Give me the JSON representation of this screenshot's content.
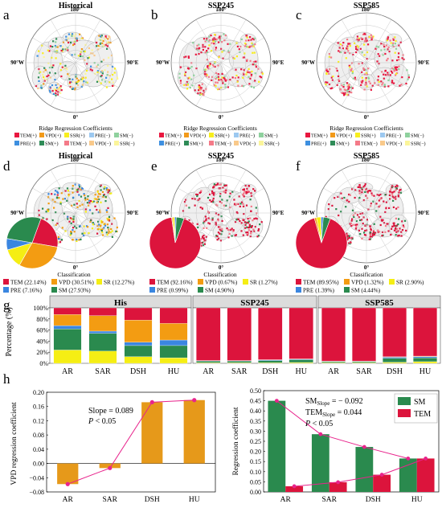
{
  "panels": {
    "a": {
      "letter": "a",
      "title": "Historical"
    },
    "b": {
      "letter": "b",
      "title": "SSP245"
    },
    "c": {
      "letter": "c",
      "title": "SSP585"
    },
    "d": {
      "letter": "d",
      "title": "Historical"
    },
    "e": {
      "letter": "e",
      "title": "SSP245"
    },
    "f": {
      "letter": "f",
      "title": "SSP585"
    },
    "g": {
      "letter": "g"
    },
    "h": {
      "letter": "h"
    }
  },
  "map_labels": {
    "top": "180°",
    "left": "90°W",
    "right": "90°E",
    "bottom": "0°"
  },
  "colors": {
    "TEM_pos": "#e8173f",
    "TEM_neg": "#f47a88",
    "PRE_pos": "#3d8fe0",
    "PRE_neg": "#9cc8f0",
    "VPD_pos": "#f29a1a",
    "VPD_neg": "#f9c98a",
    "SM_pos": "#2e8b57",
    "SM_neg": "#8fd19e",
    "SSR_pos": "#f7ee1e",
    "SSR_neg": "#fbf59a",
    "TEM": "#dc143c",
    "VPD": "#f39c12",
    "SR": "#f5ee14",
    "PRE": "#3a86e0",
    "SM": "#2a8a4e",
    "bar_orange": "#e6991a",
    "line_magenta": "#e8248c"
  },
  "ridge_legend": {
    "title": "Ridge Regression Coefficients",
    "items": [
      {
        "label": "TEM(+)",
        "color": "#e8173f"
      },
      {
        "label": "VPD(+)",
        "color": "#f29a1a"
      },
      {
        "label": "SSR(+)",
        "color": "#f7ee1e"
      },
      {
        "label": "PRE(−)",
        "color": "#9cc8f0"
      },
      {
        "label": "SM(−)",
        "color": "#8fd19e"
      },
      {
        "label": "PRE(+)",
        "color": "#3d8fe0"
      },
      {
        "label": "SM(+)",
        "color": "#2e8b57"
      },
      {
        "label": "TEM(−)",
        "color": "#f47a88"
      },
      {
        "label": "VPD(−)",
        "color": "#f9c98a"
      },
      {
        "label": "SSR(−)",
        "color": "#fbf59a"
      }
    ]
  },
  "classification": {
    "title": "Classification",
    "historical": [
      {
        "label": "TEM (22.14%)",
        "value": 22.14,
        "color": "#dc143c"
      },
      {
        "label": "VPD (30.51%)",
        "value": 30.51,
        "color": "#f39c12"
      },
      {
        "label": "SR (12.27%)",
        "value": 12.27,
        "color": "#f5ee14"
      },
      {
        "label": "PRE (7.16%)",
        "value": 7.16,
        "color": "#3a86e0"
      },
      {
        "label": "SM (27.93%)",
        "value": 27.93,
        "color": "#2a8a4e"
      }
    ],
    "ssp245": [
      {
        "label": "TEM (92.16%)",
        "value": 92.16,
        "color": "#dc143c"
      },
      {
        "label": "VPD (0.67%)",
        "value": 0.67,
        "color": "#f39c12"
      },
      {
        "label": "SR (1.27%)",
        "value": 1.27,
        "color": "#f5ee14"
      },
      {
        "label": "PRE (0.99%)",
        "value": 0.99,
        "color": "#3a86e0"
      },
      {
        "label": "SM (4.90%)",
        "value": 4.9,
        "color": "#2a8a4e"
      }
    ],
    "ssp585": [
      {
        "label": "TEM (89.95%)",
        "value": 89.95,
        "color": "#dc143c"
      },
      {
        "label": "VPD (1.32%)",
        "value": 1.32,
        "color": "#f39c12"
      },
      {
        "label": "SR (2.90%)",
        "value": 2.9,
        "color": "#f5ee14"
      },
      {
        "label": "PRE (1.39%)",
        "value": 1.39,
        "color": "#3a86e0"
      },
      {
        "label": "SM (4.44%)",
        "value": 4.44,
        "color": "#2a8a4e"
      }
    ]
  },
  "chart_data": [
    {
      "type": "bar",
      "stacked": true,
      "ylabel": "Percentage (%)",
      "yticks": [
        "0%",
        "20%",
        "40%",
        "60%",
        "80%",
        "100%"
      ],
      "ylim": [
        0,
        100
      ],
      "categories": [
        "AR",
        "SAR",
        "DSH",
        "HU"
      ],
      "stack_order": [
        "SR",
        "SM",
        "PRE",
        "VPD",
        "TEM"
      ],
      "groups": [
        {
          "name": "His",
          "stacks": {
            "AR": {
              "SR": 24,
              "SM": 38,
              "PRE": 6,
              "VPD": 20,
              "TEM": 12
            },
            "SAR": {
              "SR": 22,
              "SM": 32,
              "PRE": 4,
              "VPD": 28,
              "TEM": 14
            },
            "DSH": {
              "SR": 12,
              "SM": 20,
              "PRE": 6,
              "VPD": 40,
              "TEM": 22
            },
            "HU": {
              "SR": 10,
              "SM": 22,
              "PRE": 10,
              "VPD": 30,
              "TEM": 28
            }
          }
        },
        {
          "name": "SSP245",
          "stacks": {
            "AR": {
              "SR": 1,
              "SM": 3,
              "PRE": 0.5,
              "VPD": 0.5,
              "TEM": 95
            },
            "SAR": {
              "SR": 1,
              "SM": 3,
              "PRE": 0.5,
              "VPD": 0.5,
              "TEM": 95
            },
            "DSH": {
              "SR": 1,
              "SM": 4,
              "PRE": 1,
              "VPD": 0.5,
              "TEM": 93.5
            },
            "HU": {
              "SR": 1.5,
              "SM": 5,
              "PRE": 1,
              "VPD": 0.5,
              "TEM": 92
            }
          }
        },
        {
          "name": "SSP585",
          "stacks": {
            "AR": {
              "SR": 1,
              "SM": 2,
              "PRE": 0.5,
              "VPD": 0.5,
              "TEM": 96
            },
            "SAR": {
              "SR": 1,
              "SM": 2,
              "PRE": 0.5,
              "VPD": 0.5,
              "TEM": 96
            },
            "DSH": {
              "SR": 2,
              "SM": 7,
              "PRE": 2,
              "VPD": 1,
              "TEM": 88
            },
            "HU": {
              "SR": 3,
              "SM": 7,
              "PRE": 2,
              "VPD": 1,
              "TEM": 87
            }
          }
        }
      ]
    },
    {
      "type": "bar",
      "ylabel": "VPD regression coefficient",
      "categories": [
        "AR",
        "SAR",
        "DSH",
        "HU"
      ],
      "values": [
        -0.058,
        -0.013,
        0.172,
        0.178
      ],
      "line_values": [
        -0.058,
        -0.013,
        0.172,
        0.178
      ],
      "ylim": [
        -0.08,
        0.2
      ],
      "yticks": [
        "−0.08",
        "−0.04",
        "0.00",
        "0.04",
        "0.08",
        "0.12",
        "0.16",
        "0.20"
      ],
      "annotation_slope": "Slope = 0.089",
      "annotation_p_label": "P",
      "annotation_p_rest": " < 0.05"
    },
    {
      "type": "bar",
      "ylabel": "Regression coefficient",
      "categories": [
        "AR",
        "SAR",
        "DSH",
        "HU"
      ],
      "series": [
        {
          "name": "SM",
          "values": [
            0.45,
            0.285,
            0.222,
            0.165
          ],
          "color": "#2a8a4e"
        },
        {
          "name": "TEM",
          "values": [
            0.028,
            0.048,
            0.085,
            0.165
          ],
          "color": "#dc143c"
        }
      ],
      "ylim": [
        0,
        0.5
      ],
      "yticks": [
        "0.00",
        "0.05",
        "0.10",
        "0.15",
        "0.20",
        "0.25",
        "0.30",
        "0.35",
        "0.40",
        "0.45",
        "0.50"
      ],
      "annotation_sm_main": "SM",
      "annotation_sm_sub": "Slope",
      "annotation_sm_value": " = − 0.092",
      "annotation_tem_main": "TEM",
      "annotation_tem_sub": "Slope",
      "annotation_tem_value": " = 0.044",
      "annotation_p_label": "P",
      "annotation_p_rest": " < 0.05"
    }
  ]
}
